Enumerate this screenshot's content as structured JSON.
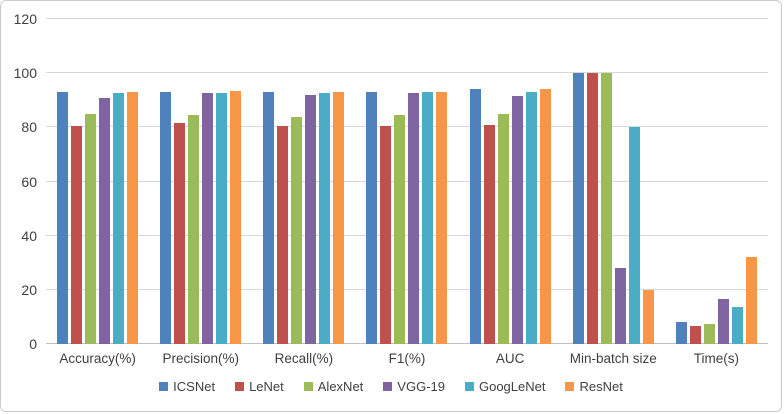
{
  "chart_data": {
    "type": "bar",
    "title": "",
    "xlabel": "",
    "ylabel": "",
    "ylim": [
      0,
      120
    ],
    "ytick_interval": 20,
    "ytick_labels": [
      "0",
      "20",
      "40",
      "60",
      "80",
      "100",
      "120"
    ],
    "grid": true,
    "legend_position": "bottom",
    "categories": [
      "Accuracy(%)",
      "Precision(%)",
      "Recall(%)",
      "F1(%)",
      "AUC",
      "Min-batch size",
      "Time(s)"
    ],
    "series": [
      {
        "name": "ICSNet",
        "color": "#4F81BD",
        "values": [
          93,
          93,
          93,
          93,
          94,
          100,
          8
        ]
      },
      {
        "name": "LeNet",
        "color": "#C0504D",
        "values": [
          80.5,
          81.5,
          80.5,
          80.5,
          81,
          100,
          6.5
        ]
      },
      {
        "name": "AlexNet",
        "color": "#9BBB59",
        "values": [
          85,
          84.5,
          84,
          84.5,
          85,
          100,
          7.5
        ]
      },
      {
        "name": "VGG-19",
        "color": "#8064A2",
        "values": [
          91,
          92.5,
          92,
          92.5,
          91.5,
          28,
          16.5
        ]
      },
      {
        "name": "GoogLeNet",
        "color": "#4BACC6",
        "values": [
          92.5,
          92.5,
          92.5,
          93,
          93,
          80,
          13.5
        ]
      },
      {
        "name": "ResNet",
        "color": "#F79646",
        "values": [
          93,
          93.5,
          93,
          93,
          94,
          20,
          32
        ]
      }
    ],
    "colors": {
      "gridline": "#d9d9d9",
      "axis_line": "#bfbfbf",
      "text": "#404040",
      "background": "#ffffff",
      "border": "#c9cdd1"
    }
  }
}
